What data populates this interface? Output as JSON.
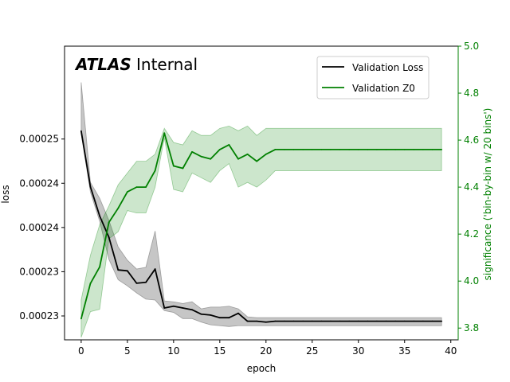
{
  "chart_data": {
    "type": "line",
    "experiment_label": "ATLAS",
    "status_label": "Internal",
    "xlabel": "epoch",
    "ylabel_left": "loss",
    "ylabel_right": "significance ('bin-by-bin w/ 20 bins')",
    "xlim": [
      -1.8,
      40.8
    ],
    "ylim_left": [
      0.0002228,
      0.000256
    ],
    "ylim_right": [
      3.75,
      5.0
    ],
    "x_ticks": [
      0,
      5,
      10,
      15,
      20,
      25,
      30,
      35,
      40
    ],
    "x_tick_labels": [
      "0",
      "5",
      "10",
      "15",
      "20",
      "25",
      "30",
      "35",
      "40"
    ],
    "y_left_ticks": [
      0.0002255,
      0.0002305,
      0.0002355,
      0.0002405,
      0.0002455
    ],
    "y_left_tick_labels": [
      "0.00023",
      "0.00023",
      "0.00024",
      "0.00024",
      "0.00025"
    ],
    "y_right_ticks": [
      3.8,
      4.0,
      4.2,
      4.4,
      4.6,
      4.8,
      5.0
    ],
    "y_right_tick_labels": [
      "3.8",
      "4.0",
      "4.2",
      "4.4",
      "4.6",
      "4.8",
      "5.0"
    ],
    "legend_location": "upper right",
    "series": [
      {
        "name": "Validation Loss",
        "axis": "left",
        "color": "#000000",
        "band_color": "#808080",
        "x": [
          0,
          1,
          2,
          3,
          4,
          5,
          6,
          7,
          8,
          9,
          10,
          11,
          12,
          13,
          14,
          15,
          16,
          17,
          18,
          19,
          20,
          21,
          22,
          23,
          24,
          25,
          26,
          27,
          28,
          29,
          30,
          31,
          32,
          33,
          34,
          35,
          36,
          37,
          38,
          39
        ],
        "values": [
          0.0002464,
          0.0002401,
          0.0002368,
          0.0002344,
          0.0002307,
          0.0002306,
          0.0002292,
          0.0002293,
          0.0002308,
          0.0002264,
          0.0002266,
          0.0002264,
          0.0002262,
          0.0002257,
          0.0002256,
          0.0002253,
          0.0002253,
          0.0002258,
          0.0002249,
          0.0002249,
          0.0002248,
          0.0002249,
          0.0002249,
          0.0002249,
          0.0002249,
          0.0002249,
          0.0002249,
          0.0002249,
          0.0002249,
          0.0002249,
          0.0002249,
          0.0002249,
          0.0002249,
          0.0002249,
          0.0002249,
          0.0002249,
          0.0002249,
          0.0002249,
          0.0002249,
          0.0002249
        ],
        "band_upper": [
          0.0002519,
          0.0002406,
          0.0002388,
          0.0002363,
          0.0002333,
          0.0002318,
          0.0002308,
          0.000231,
          0.0002351,
          0.0002272,
          0.0002271,
          0.0002269,
          0.0002271,
          0.0002263,
          0.0002265,
          0.0002265,
          0.0002266,
          0.0002263,
          0.0002254,
          0.0002253,
          0.0002253,
          0.0002253,
          0.0002253,
          0.0002253,
          0.0002253,
          0.0002253,
          0.0002253,
          0.0002253,
          0.0002253,
          0.0002253,
          0.0002253,
          0.0002253,
          0.0002253,
          0.0002253,
          0.0002253,
          0.0002253,
          0.0002253,
          0.0002253,
          0.0002253,
          0.0002253
        ],
        "band_lower": [
          0.0002461,
          0.0002395,
          0.0002362,
          0.0002319,
          0.0002296,
          0.0002289,
          0.0002281,
          0.0002274,
          0.0002273,
          0.0002261,
          0.0002259,
          0.0002252,
          0.0002252,
          0.0002248,
          0.0002245,
          0.0002244,
          0.0002243,
          0.0002244,
          0.0002244,
          0.0002244,
          0.0002244,
          0.0002244,
          0.0002244,
          0.0002244,
          0.0002244,
          0.0002244,
          0.0002244,
          0.0002244,
          0.0002244,
          0.0002244,
          0.0002244,
          0.0002244,
          0.0002244,
          0.0002244,
          0.0002244,
          0.0002244,
          0.0002244,
          0.0002244,
          0.0002244,
          0.0002244
        ]
      },
      {
        "name": "Validation Z0",
        "axis": "right",
        "color": "#008000",
        "band_color": "#008000",
        "x": [
          0,
          1,
          2,
          3,
          4,
          5,
          6,
          7,
          8,
          9,
          10,
          11,
          12,
          13,
          14,
          15,
          16,
          17,
          18,
          19,
          20,
          21,
          22,
          23,
          24,
          25,
          26,
          27,
          28,
          29,
          30,
          31,
          32,
          33,
          34,
          35,
          36,
          37,
          38,
          39
        ],
        "values": [
          3.84,
          3.99,
          4.06,
          4.25,
          4.31,
          4.38,
          4.4,
          4.4,
          4.47,
          4.63,
          4.49,
          4.48,
          4.55,
          4.53,
          4.52,
          4.56,
          4.58,
          4.52,
          4.54,
          4.51,
          4.54,
          4.56,
          4.56,
          4.56,
          4.56,
          4.56,
          4.56,
          4.56,
          4.56,
          4.56,
          4.56,
          4.56,
          4.56,
          4.56,
          4.56,
          4.56,
          4.56,
          4.56,
          4.56,
          4.56
        ],
        "band_upper": [
          3.92,
          4.11,
          4.24,
          4.32,
          4.41,
          4.46,
          4.51,
          4.51,
          4.54,
          4.65,
          4.59,
          4.58,
          4.64,
          4.62,
          4.62,
          4.65,
          4.66,
          4.64,
          4.66,
          4.62,
          4.65,
          4.65,
          4.65,
          4.65,
          4.65,
          4.65,
          4.65,
          4.65,
          4.65,
          4.65,
          4.65,
          4.65,
          4.65,
          4.65,
          4.65,
          4.65,
          4.65,
          4.65,
          4.65,
          4.65
        ]
      }
    ]
  }
}
